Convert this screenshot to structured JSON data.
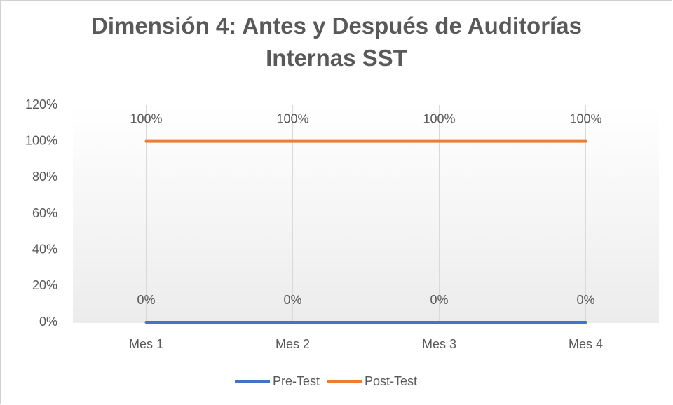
{
  "chart_data": {
    "type": "line",
    "title": "Dimensión 4: Antes y Después de Auditorías Internas SST",
    "categories": [
      "Mes 1",
      "Mes 2",
      "Mes 3",
      "Mes 4"
    ],
    "series": [
      {
        "name": "Pre-Test",
        "color": "#4472c4",
        "values": [
          0,
          0,
          0,
          0
        ],
        "value_labels": [
          "0%",
          "0%",
          "0%",
          "0%"
        ]
      },
      {
        "name": "Post-Test",
        "color": "#ed7d31",
        "values": [
          100,
          100,
          100,
          100
        ],
        "value_labels": [
          "100%",
          "100%",
          "100%",
          "100%"
        ]
      }
    ],
    "ylim": [
      0,
      120
    ],
    "yticks": [
      {
        "value": 0,
        "label": "0%"
      },
      {
        "value": 20,
        "label": "20%"
      },
      {
        "value": 40,
        "label": "40%"
      },
      {
        "value": 60,
        "label": "60%"
      },
      {
        "value": 80,
        "label": "80%"
      },
      {
        "value": 100,
        "label": "100%"
      },
      {
        "value": 120,
        "label": "120%"
      }
    ],
    "xgrid": true,
    "legend": "bottom"
  }
}
